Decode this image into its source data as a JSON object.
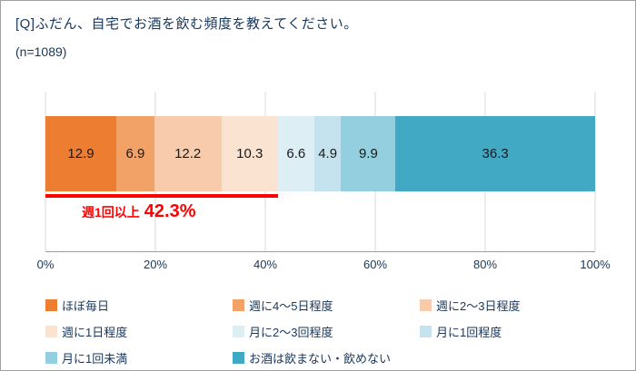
{
  "header": {
    "question": "[Q]ふだん、自宅でお酒を飲む頻度を教えてください。",
    "sample_size": "(n=1089)"
  },
  "chart_data": {
    "type": "bar",
    "subtype": "horizontal-stacked-single",
    "categories": [
      "ほぼ毎日",
      "週に4〜5日程度",
      "週に2〜3日程度",
      "週に1日程度",
      "月に2〜3回程度",
      "月に1回程度",
      "月に1回未満",
      "お酒は飲まない・飲めない"
    ],
    "values": [
      12.9,
      6.9,
      12.2,
      10.3,
      6.6,
      4.9,
      9.9,
      36.3
    ],
    "colors": [
      "#ed7d31",
      "#f2a266",
      "#f8cbad",
      "#fbe3d1",
      "#ddeef5",
      "#c4e3ee",
      "#93cfdf",
      "#42a9c5"
    ],
    "xlim": [
      0,
      100
    ],
    "x_ticks": [
      "0%",
      "20%",
      "40%",
      "60%",
      "80%",
      "100%"
    ],
    "x_tick_values": [
      0,
      20,
      40,
      60,
      80,
      100
    ],
    "grid": true,
    "legend_position": "bottom",
    "value_label_color": "#1a1a1a",
    "annotation": {
      "label": "週1回以上",
      "value": "42.3%",
      "span_percent": 42.3,
      "color": "#ff0000"
    }
  }
}
